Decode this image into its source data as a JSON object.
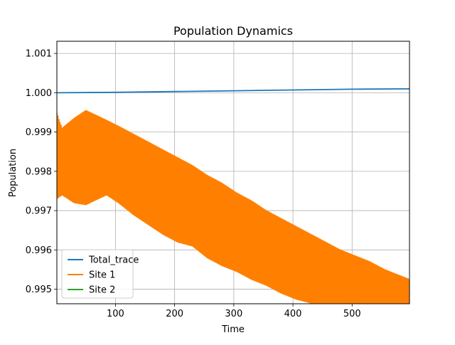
{
  "chart_data": {
    "type": "line",
    "title": "Population Dynamics",
    "xlabel": "Time",
    "ylabel": "Population",
    "xlim": [
      1,
      597
    ],
    "ylim": [
      0.99463,
      1.00131
    ],
    "xticks": [
      100,
      200,
      300,
      400,
      500
    ],
    "xtick_labels": [
      "100",
      "200",
      "300",
      "400",
      "500"
    ],
    "yticks": [
      0.995,
      0.996,
      0.997,
      0.998,
      0.999,
      1.0,
      1.001
    ],
    "ytick_labels": [
      "0.995",
      "0.996",
      "0.997",
      "0.998",
      "0.999",
      "1.000",
      "1.001"
    ],
    "grid": true,
    "legend_position": "lower-left",
    "series": [
      {
        "name": "Total_trace",
        "color": "#1f77b4",
        "kind": "line",
        "x": [
          1,
          100,
          200,
          300,
          400,
          500,
          597
        ],
        "y": [
          1.0,
          1.00001,
          1.00003,
          1.00005,
          1.00007,
          1.00009,
          1.0001
        ]
      },
      {
        "name": "Site 1",
        "color": "#ff7f00",
        "kind": "oscillating-band",
        "x": [
          1,
          5,
          10,
          30,
          50,
          85,
          105,
          130,
          155,
          180,
          205,
          230,
          255,
          280,
          305,
          330,
          355,
          380,
          405,
          430,
          455,
          480,
          505,
          530,
          555,
          580,
          597
        ],
        "upper": [
          0.9995,
          0.9993,
          0.9991,
          0.99935,
          0.99955,
          0.9993,
          0.99915,
          0.99895,
          0.99875,
          0.99855,
          0.99835,
          0.99815,
          0.9979,
          0.9977,
          0.99745,
          0.99725,
          0.997,
          0.9968,
          0.9966,
          0.9964,
          0.9962,
          0.996,
          0.99585,
          0.9957,
          0.9955,
          0.99535,
          0.99525
        ],
        "lower": [
          0.9973,
          0.99735,
          0.9974,
          0.9972,
          0.99715,
          0.9974,
          0.9972,
          0.9969,
          0.99665,
          0.9964,
          0.9962,
          0.9961,
          0.9958,
          0.9956,
          0.99545,
          0.99525,
          0.9951,
          0.9949,
          0.99475,
          0.99465,
          0.9945,
          0.9944,
          0.99425,
          0.99415,
          0.99405,
          0.99395,
          0.9939
        ]
      },
      {
        "name": "Site 2",
        "color": "#2ca02c",
        "kind": "line",
        "x": [],
        "y": []
      }
    ]
  }
}
